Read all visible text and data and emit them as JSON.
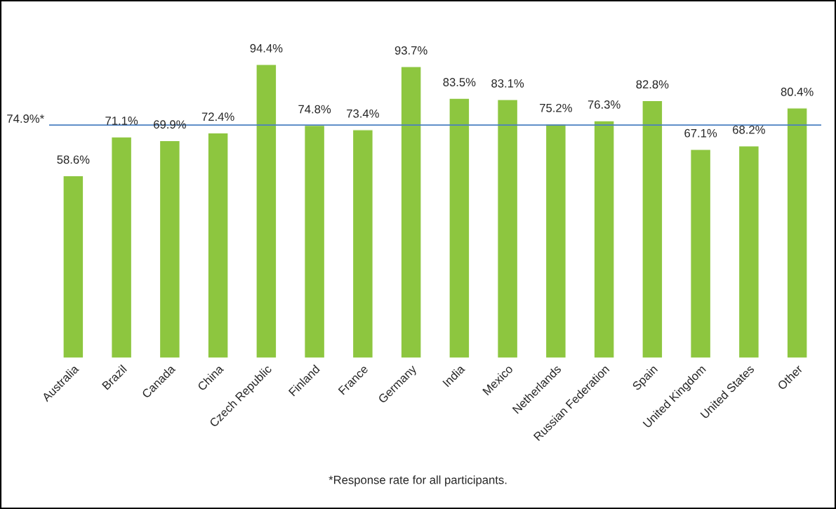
{
  "chart_data": {
    "type": "bar",
    "categories": [
      "Australia",
      "Brazil",
      "Canada",
      "China",
      "Czech Republic",
      "Finland",
      "France",
      "Germany",
      "India",
      "Mexico",
      "Netherlands",
      "Russian Federation",
      "Spain",
      "United Kingdom",
      "United States",
      "Other"
    ],
    "values": [
      58.6,
      71.1,
      69.9,
      72.4,
      94.4,
      74.8,
      73.4,
      93.7,
      83.5,
      83.1,
      75.2,
      76.3,
      82.8,
      67.1,
      68.2,
      80.4
    ],
    "value_labels": [
      "58.6%",
      "71.1%",
      "69.9%",
      "72.4%",
      "94.4%",
      "74.8%",
      "73.4%",
      "93.7%",
      "83.5%",
      "83.1%",
      "75.2%",
      "76.3%",
      "82.8%",
      "67.1%",
      "68.2%",
      "80.4%"
    ],
    "color": "#8dc63f",
    "ref_lines": [
      {
        "axis": "y",
        "value": 74.9,
        "label": "74.9%*",
        "color": "#4a7fc1"
      }
    ],
    "annotations": [
      "*Response rate for all participants."
    ],
    "grid": false,
    "legend": false,
    "tick_labels": "x"
  }
}
